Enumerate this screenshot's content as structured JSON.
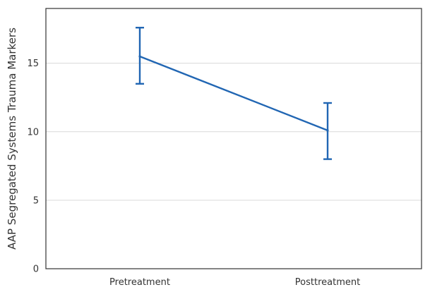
{
  "chart_data": {
    "type": "line",
    "title": "",
    "xlabel": "",
    "ylabel": "AAP Segregated Systems Trauma Markers",
    "categories": [
      "Pretreatment",
      "Posttreatment"
    ],
    "series": [
      {
        "values": [
          15.5,
          10.1
        ],
        "error_low": [
          13.5,
          8.0
        ],
        "error_high": [
          17.6,
          12.1
        ],
        "color": "#2166b3"
      }
    ],
    "ylim": [
      0,
      19
    ],
    "yticks": [
      0,
      5,
      10,
      15
    ],
    "grid": true,
    "legend": "none"
  }
}
